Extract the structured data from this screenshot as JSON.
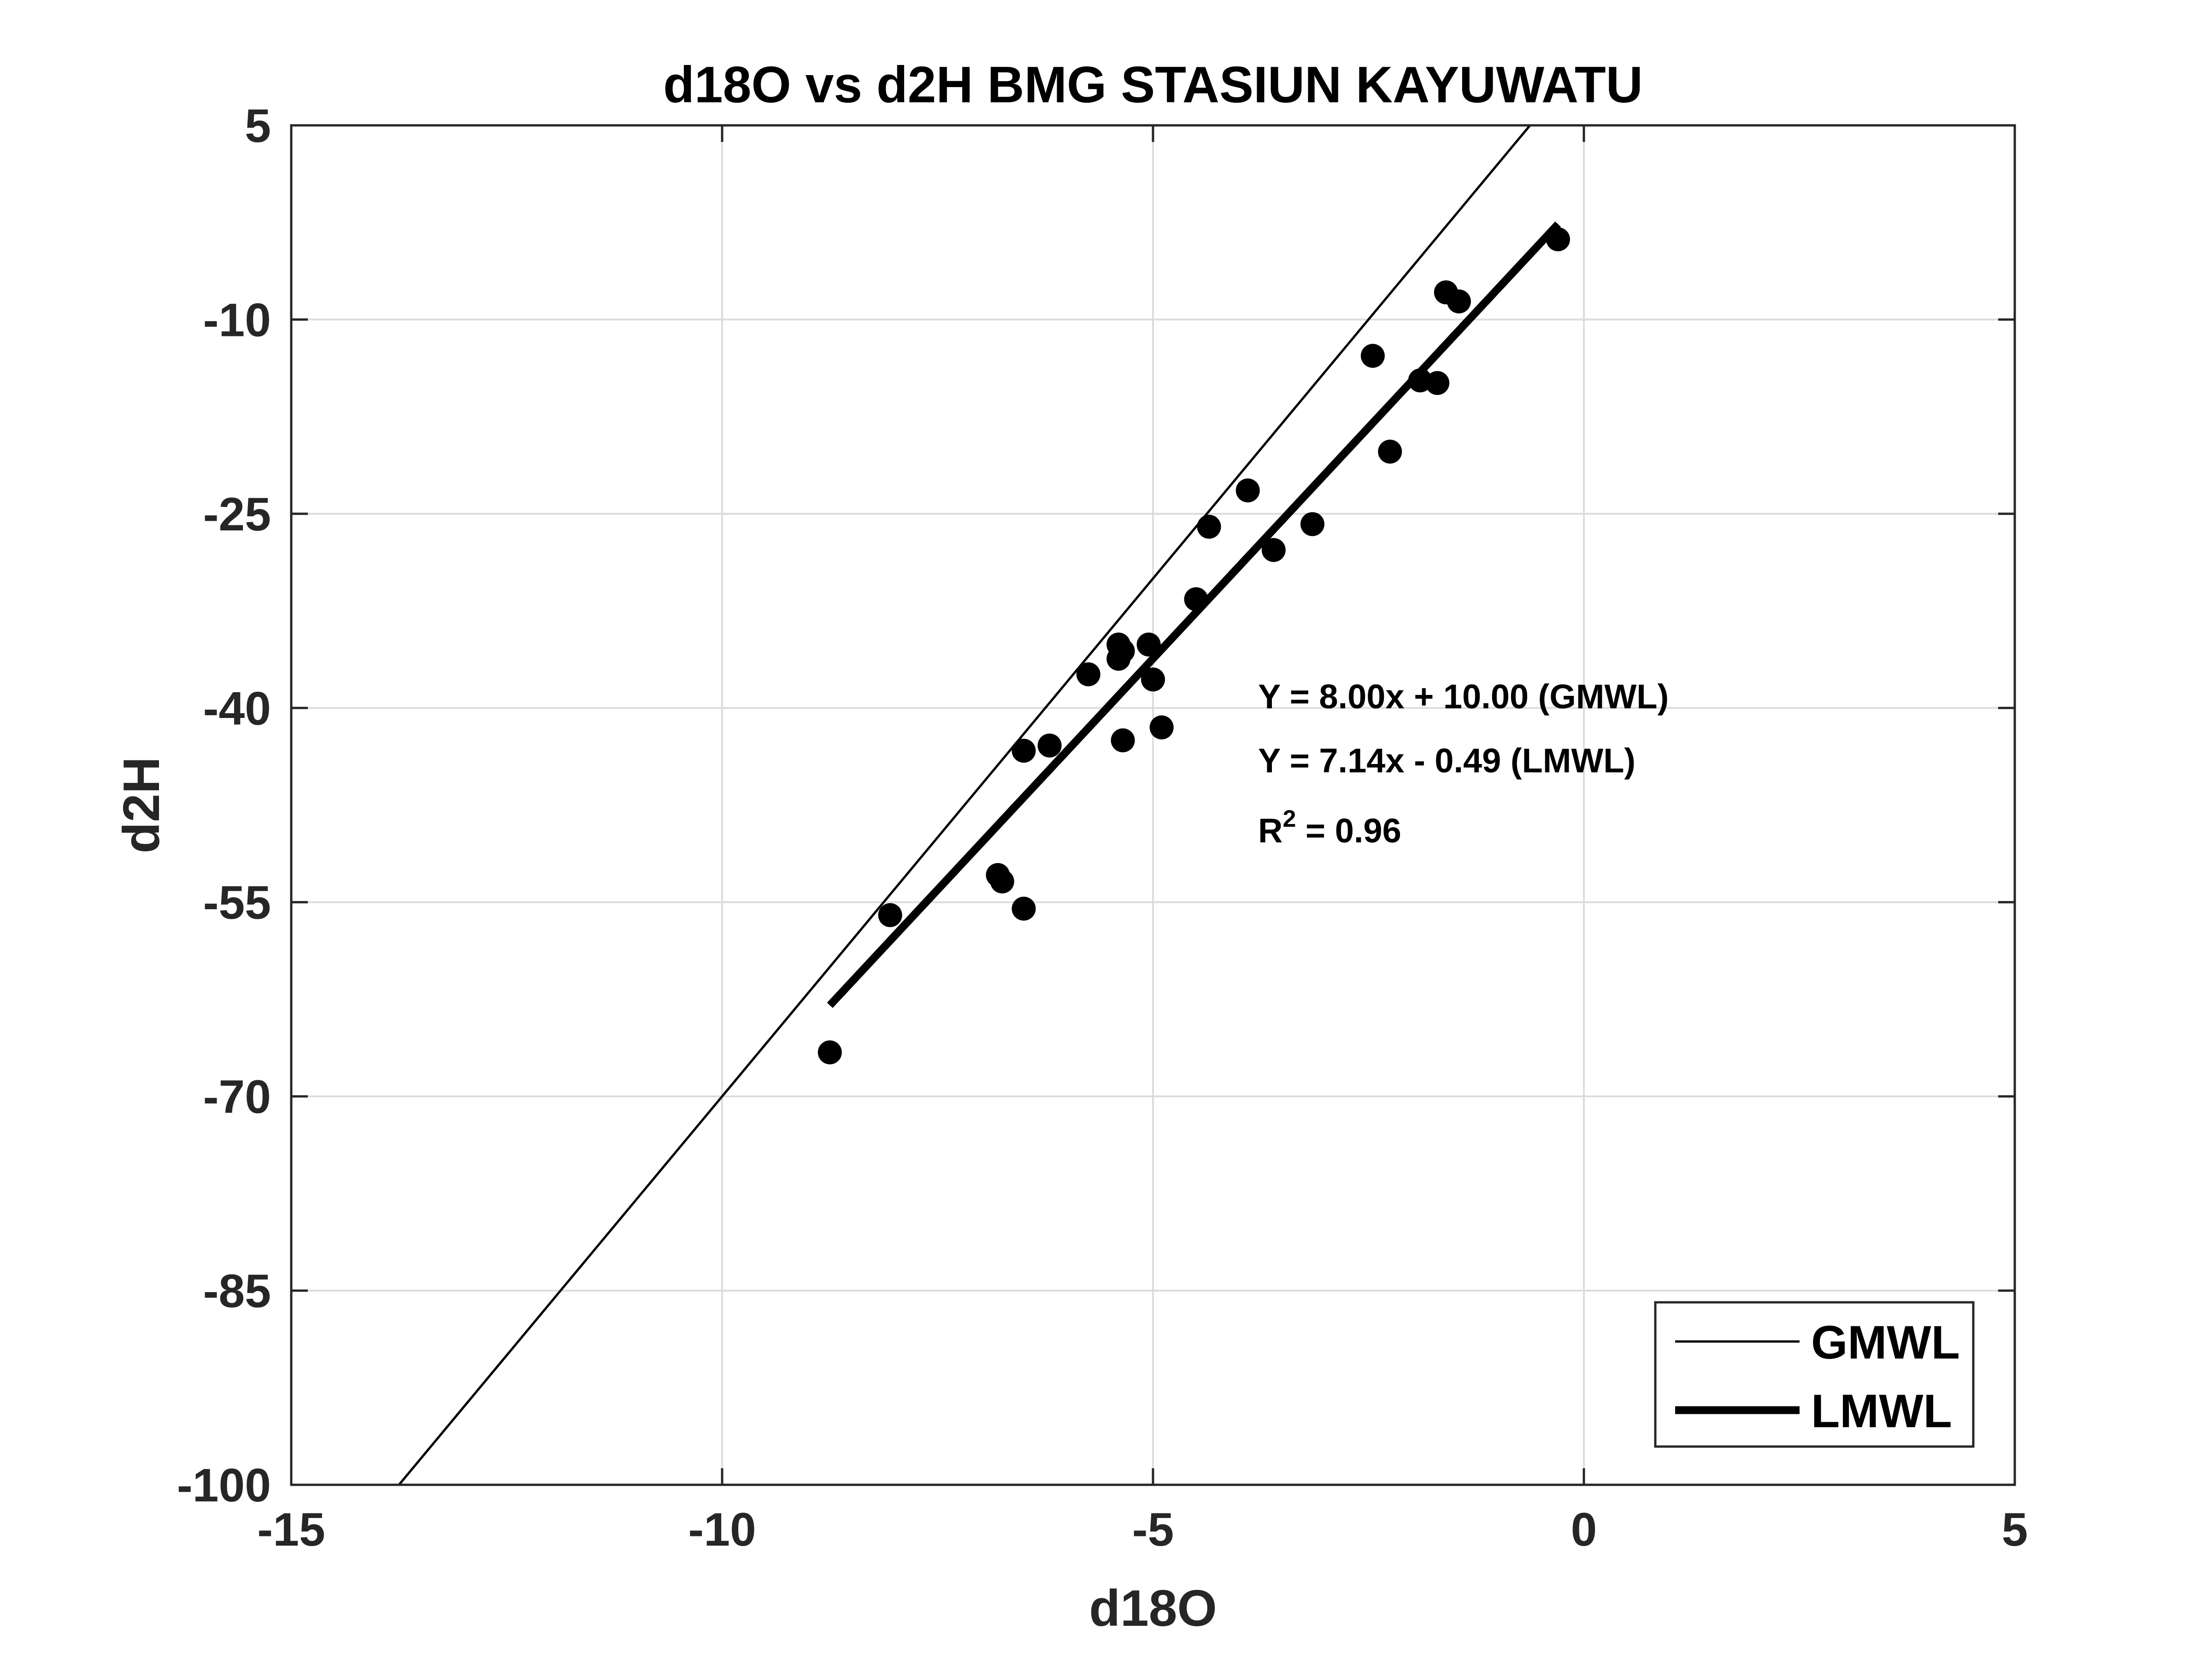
{
  "chart_data": {
    "type": "scatter",
    "title": "d18O vs d2H BMG STASIUN KAYUWATU",
    "xlabel": "d18O",
    "ylabel": "d2H",
    "xlim": [
      -15,
      5
    ],
    "ylim": [
      -100,
      5
    ],
    "xticks": [
      -15,
      -10,
      -5,
      0,
      5
    ],
    "yticks": [
      5,
      -10,
      -25,
      -40,
      -55,
      -70,
      -85,
      -100
    ],
    "grid": true,
    "legend_position": "bottom-right",
    "series": [
      {
        "kind": "points",
        "points": [
          [
            -8.75,
            -66.6
          ],
          [
            -8.05,
            -56.0
          ],
          [
            -6.8,
            -52.9
          ],
          [
            -6.75,
            -53.4
          ],
          [
            -6.5,
            -55.5
          ],
          [
            -6.5,
            -43.3
          ],
          [
            -6.2,
            -42.9
          ],
          [
            -5.75,
            -37.4
          ],
          [
            -5.4,
            -35.1
          ],
          [
            -5.4,
            -36.2
          ],
          [
            -5.35,
            -35.6
          ],
          [
            -5.35,
            -42.5
          ],
          [
            -5.05,
            -35.1
          ],
          [
            -5.0,
            -37.8
          ],
          [
            -4.9,
            -41.5
          ],
          [
            -4.5,
            -31.6
          ],
          [
            -4.35,
            -26.0
          ],
          [
            -3.9,
            -23.2
          ],
          [
            -3.6,
            -27.8
          ],
          [
            -3.15,
            -25.8
          ],
          [
            -2.45,
            -12.8
          ],
          [
            -2.25,
            -20.2
          ],
          [
            -1.9,
            -14.7
          ],
          [
            -1.7,
            -14.9
          ],
          [
            -1.6,
            -7.9
          ],
          [
            -1.45,
            -8.6
          ],
          [
            -0.3,
            -3.8
          ]
        ]
      },
      {
        "name": "GMWL",
        "kind": "line",
        "slope": 8.0,
        "intercept": 10.0,
        "x_range": [
          -13.75,
          -0.625
        ]
      },
      {
        "name": "LMWL",
        "kind": "line",
        "slope": 7.14,
        "intercept": -0.49,
        "x_range": [
          -8.75,
          -0.3
        ]
      }
    ],
    "annotations": {
      "gmwl_eq": "Y = 8.00x + 10.00 (GMWL)",
      "lmwl_eq": "Y = 7.14x - 0.49 (LMWL)",
      "r2_prefix": "R",
      "r2_sup": "2",
      "r2_value": " = 0.96"
    },
    "legend": [
      "GMWL",
      "LMWL"
    ]
  }
}
